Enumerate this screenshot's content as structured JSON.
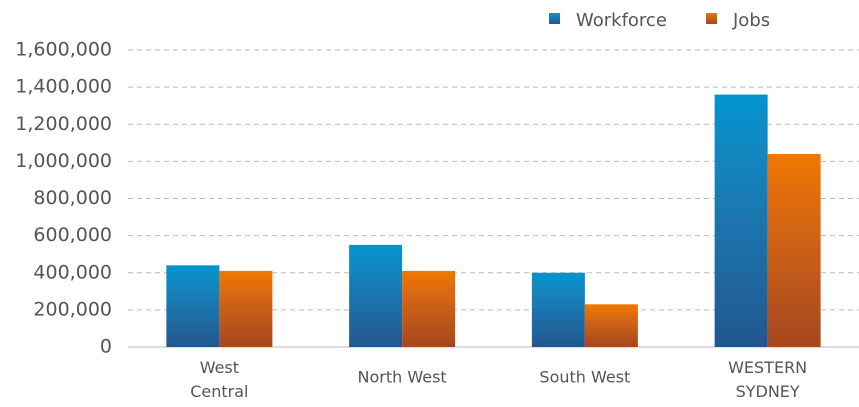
{
  "chart_data": {
    "type": "bar",
    "categories": [
      "West Central",
      "North West",
      "South West",
      "WESTERN SYDNEY"
    ],
    "series": [
      {
        "name": "Workforce",
        "color": "#0095cf",
        "values": [
          440000,
          550000,
          400000,
          1360000
        ]
      },
      {
        "name": "Jobs",
        "color": "#f07800",
        "values": [
          410000,
          410000,
          230000,
          1040000
        ]
      }
    ],
    "ylim": [
      0,
      1600000
    ],
    "yticks": [
      0,
      {
        "value": 200000,
        "label": "200,000"
      },
      {
        "value": 400000,
        "label": "400,000"
      },
      {
        "value": 600000,
        "label": "600,000"
      },
      {
        "value": 800000,
        "label": "800,000"
      },
      {
        "value": 1000000,
        "label": "1,000,000"
      },
      {
        "value": 1200000,
        "label": "1,200,000"
      },
      {
        "value": 1400000,
        "label": "1,400,000"
      },
      {
        "value": 1600000,
        "label": "1,600,000"
      }
    ],
    "grid": true,
    "legend": "top-right"
  }
}
